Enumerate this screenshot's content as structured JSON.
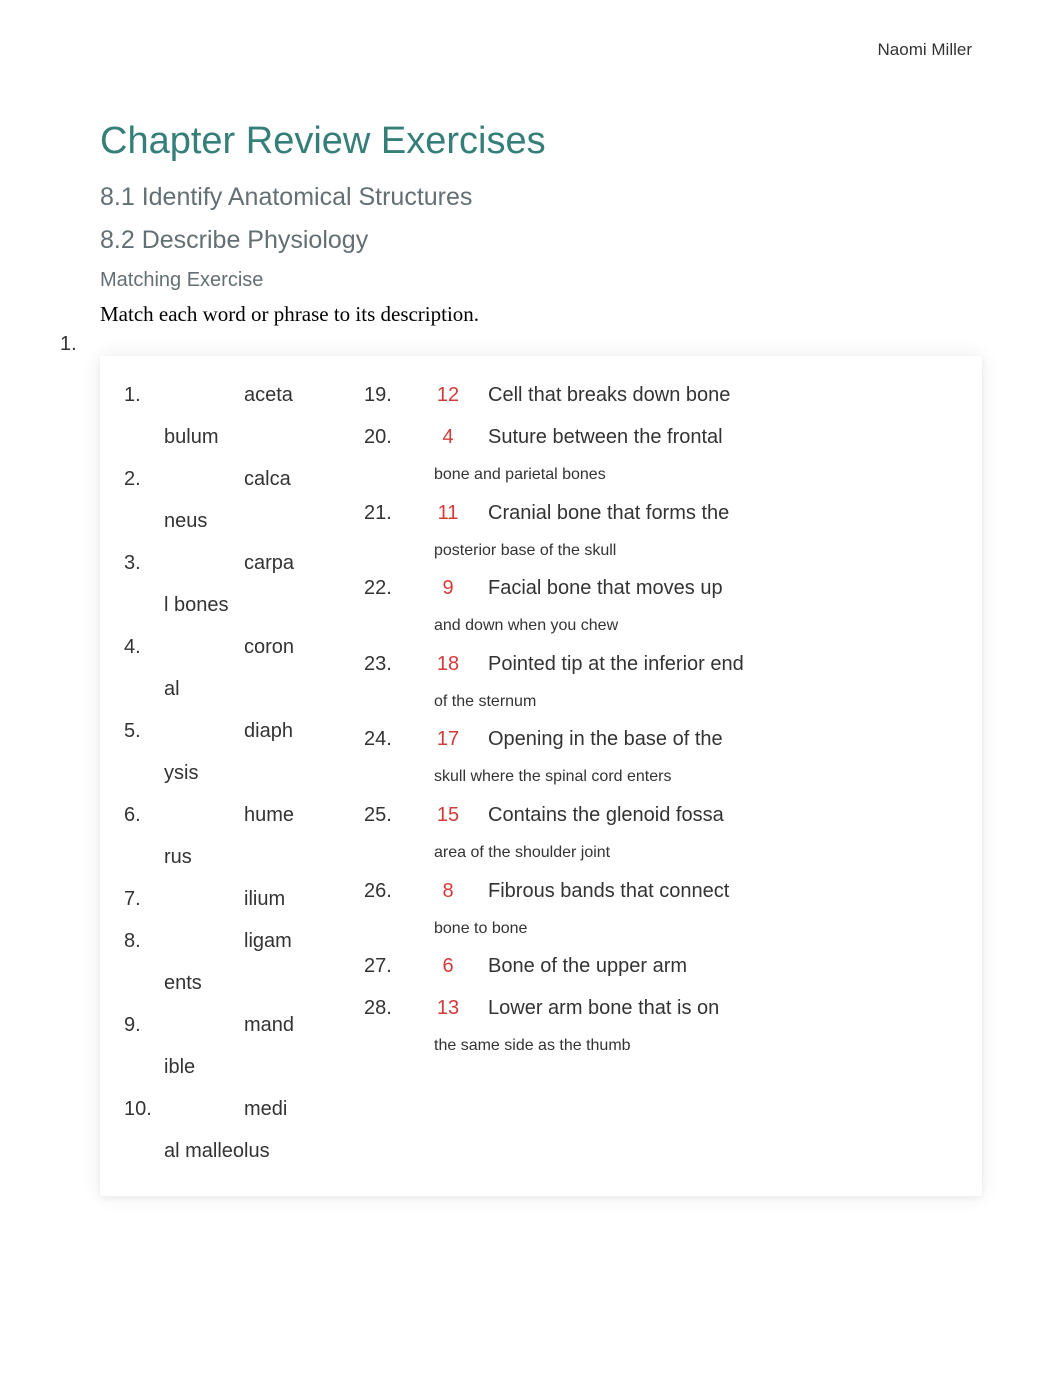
{
  "author": "Naomi Miller",
  "chapter_title": "Chapter Review Exercises",
  "section_81": "8.1 Identify Anatomical Structures",
  "section_82": "8.2 Describe Physiology",
  "matching_title": "Matching Exercise",
  "instruction": "Match each word or phrase to its description.",
  "list_marker": "1.",
  "terms": [
    {
      "num": "1.",
      "word": "aceta",
      "cont": "bulum"
    },
    {
      "num": "2.",
      "word": "calca",
      "cont": "neus"
    },
    {
      "num": "3.",
      "word": "carpa",
      "cont": "l bones"
    },
    {
      "num": "4.",
      "word": "coron",
      "cont": "al"
    },
    {
      "num": "5.",
      "word": "diaph",
      "cont": "ysis"
    },
    {
      "num": "6.",
      "word": "hume",
      "cont": "rus"
    },
    {
      "num": "7.",
      "word": "ilium",
      "cont": ""
    },
    {
      "num": "8.",
      "word": "ligam",
      "cont": "ents"
    },
    {
      "num": "9.",
      "word": "mand",
      "cont": "ible"
    },
    {
      "num": "10.",
      "word": "medi",
      "cont": "al malleolus"
    }
  ],
  "answers": [
    {
      "num": "19.",
      "val": "12",
      "desc": "Cell that breaks down bone",
      "cont": ""
    },
    {
      "num": "20.",
      "val": "4",
      "desc": "Suture between the frontal",
      "cont": "bone and parietal bones"
    },
    {
      "num": "21.",
      "val": "11",
      "desc": "Cranial bone that forms the",
      "cont": "posterior base of the skull"
    },
    {
      "num": "22.",
      "val": "9",
      "desc": "Facial bone that moves up",
      "cont": "and down when you chew"
    },
    {
      "num": "23.",
      "val": "18",
      "desc": "Pointed tip at the inferior end",
      "cont": "of the sternum"
    },
    {
      "num": "24.",
      "val": "17",
      "desc": "Opening in the base of the",
      "cont": "skull where the spinal cord enters"
    },
    {
      "num": "25.",
      "val": "15",
      "desc": "Contains the glenoid fossa",
      "cont": "area of the shoulder joint"
    },
    {
      "num": "26.",
      "val": "8",
      "desc": "Fibrous bands that connect",
      "cont": "bone to bone"
    },
    {
      "num": "27.",
      "val": "6",
      "desc": "Bone of the upper arm",
      "cont": ""
    },
    {
      "num": "28.",
      "val": "13",
      "desc": "Lower arm bone that is on",
      "cont": "the same side as the thumb"
    }
  ],
  "colors": {
    "title": "#357f78",
    "subtitle": "#646f73",
    "answer": "#d43a3a",
    "text": "#333333",
    "bg": "#ffffff"
  }
}
